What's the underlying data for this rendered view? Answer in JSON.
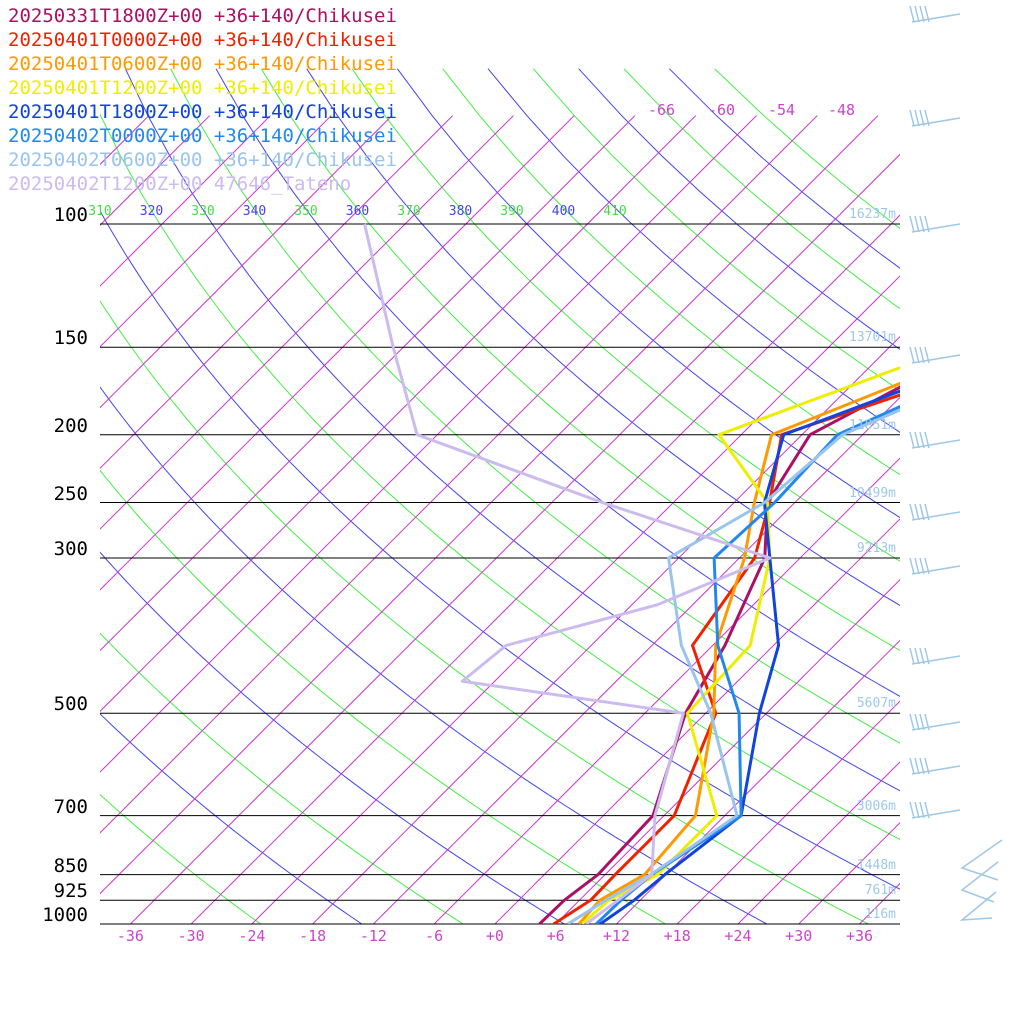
{
  "chart_data": {
    "type": "line",
    "subtype": "skew-T log-P sounding",
    "pressure_levels": [
      1000,
      925,
      850,
      700,
      500,
      300,
      250,
      200,
      150,
      100
    ],
    "pressure_labels": [
      "1000",
      "925",
      "850",
      "700",
      "500",
      "300",
      "250",
      "200",
      "150",
      "100"
    ],
    "height_labels": [
      "116m",
      "761m",
      "1448m",
      "3006m",
      "5607m",
      "9213m",
      "10499m",
      "11851m",
      "13701m",
      "16237m"
    ],
    "temperature_ticks": [
      -36,
      -30,
      -24,
      -18,
      -12,
      -6,
      0,
      6,
      12,
      18,
      24,
      30,
      36
    ],
    "temperature_tick_labels": [
      "-36",
      "-30",
      "-24",
      "-18",
      "-12",
      "-6",
      "+0",
      "+6",
      "+12",
      "+18",
      "+24",
      "+30",
      "+36"
    ],
    "top_temperature_labels": [
      "-66",
      "-60",
      "-54",
      "-48"
    ],
    "theta_labels": [
      {
        "text": "310",
        "color": "#44dd44"
      },
      {
        "text": "320",
        "color": "#4444ee"
      },
      {
        "text": "330",
        "color": "#44dd44"
      },
      {
        "text": "340",
        "color": "#4444ee"
      },
      {
        "text": "350",
        "color": "#44dd44"
      },
      {
        "text": "360",
        "color": "#4444ee"
      },
      {
        "text": "370",
        "color": "#44dd44"
      },
      {
        "text": "380",
        "color": "#4444ee"
      },
      {
        "text": "390",
        "color": "#44dd44"
      },
      {
        "text": "400",
        "color": "#4444ee"
      },
      {
        "text": "410",
        "color": "#44dd44"
      }
    ],
    "xlim": [
      -39,
      40
    ],
    "grid": true,
    "legend_position": "top-left",
    "series": [
      {
        "name": "20250331T1800Z+00 +36+140/Chikusei",
        "color": "#aa1166",
        "points": [
          [
            1000,
            4.4
          ],
          [
            925,
            4.5
          ],
          [
            850,
            5.3
          ],
          [
            700,
            4.9
          ],
          [
            500,
            -2.0
          ],
          [
            400,
            -4.8
          ],
          [
            300,
            -9.5
          ],
          [
            250,
            -14.7
          ],
          [
            200,
            -17.2
          ],
          [
            150,
            -9.5
          ],
          [
            100,
            -2.0
          ]
        ]
      },
      {
        "name": "20250401T0000Z+00 +36+140/Chikusei",
        "color": "#ee2200",
        "points": [
          [
            1000,
            5.8
          ],
          [
            925,
            7.1
          ],
          [
            850,
            7.0
          ],
          [
            700,
            7.0
          ],
          [
            500,
            1.0
          ],
          [
            400,
            -8.0
          ],
          [
            300,
            -10.5
          ],
          [
            250,
            -14.5
          ],
          [
            200,
            -20.0
          ],
          [
            150,
            -2.9
          ],
          [
            100,
            -2.5
          ]
        ]
      },
      {
        "name": "20250401T0600Z+00 +36+140/Chikusei",
        "color": "#ff9900",
        "points": [
          [
            1000,
            8.3
          ],
          [
            925,
            8.0
          ],
          [
            850,
            9.9
          ],
          [
            700,
            9.1
          ],
          [
            500,
            0.8
          ],
          [
            400,
            -5.7
          ],
          [
            300,
            -11.5
          ],
          [
            250,
            -16.0
          ],
          [
            200,
            -21.0
          ],
          [
            150,
            -8.0
          ],
          [
            100,
            -4.0
          ]
        ]
      },
      {
        "name": "20250401T1200Z+00 +36+140/Chikusei",
        "color": "#eeee00",
        "points": [
          [
            1000,
            8.6
          ],
          [
            925,
            8.9
          ],
          [
            850,
            11.2
          ],
          [
            700,
            11.2
          ],
          [
            500,
            -1.8
          ],
          [
            400,
            -2.3
          ],
          [
            300,
            -9.0
          ],
          [
            250,
            -14.7
          ],
          [
            200,
            -26.2
          ],
          [
            150,
            -11.5
          ],
          [
            100,
            -1.5
          ]
        ]
      },
      {
        "name": "20250401T1800Z+00 +36+140/Chikusei",
        "color": "#1144dd",
        "points": [
          [
            1000,
            10.4
          ],
          [
            925,
            11.4
          ],
          [
            850,
            11.9
          ],
          [
            700,
            13.6
          ],
          [
            500,
            5.3
          ],
          [
            400,
            0.5
          ],
          [
            300,
            -9.0
          ],
          [
            250,
            -15.0
          ],
          [
            200,
            -19.8
          ],
          [
            150,
            -5.4
          ],
          [
            100,
            -5.8
          ]
        ]
      },
      {
        "name": "20250402T0000Z+00 +36+140/Chikusei",
        "color": "#2288ee",
        "points": [
          [
            1000,
            10.0
          ],
          [
            925,
            10.1
          ],
          [
            850,
            10.6
          ],
          [
            700,
            13.6
          ],
          [
            500,
            3.3
          ],
          [
            400,
            -5.5
          ],
          [
            300,
            -14.5
          ],
          [
            250,
            -14.0
          ],
          [
            200,
            -14.5
          ],
          [
            150,
            -3.9
          ],
          [
            100,
            -4.0
          ]
        ]
      },
      {
        "name": "20250402T0600Z+00 +36+140/Chikusei",
        "color": "#99c4ee",
        "points": [
          [
            1000,
            7.2
          ],
          [
            925,
            8.6
          ],
          [
            850,
            10.5
          ],
          [
            700,
            13.2
          ],
          [
            500,
            0.5
          ],
          [
            400,
            -9.1
          ],
          [
            300,
            -19.0
          ],
          [
            250,
            -15.0
          ],
          [
            200,
            -14.0
          ],
          [
            150,
            -2.5
          ],
          [
            100,
            0.0
          ]
        ]
      },
      {
        "name": "20250402T1200Z+00 47646_Tateno",
        "color": "#ccbbee",
        "points": [
          [
            1000,
            9.0
          ],
          [
            925,
            9.8
          ],
          [
            850,
            10.6
          ],
          [
            700,
            5.1
          ],
          [
            500,
            -2.2
          ],
          [
            450,
            -27.2
          ],
          [
            400,
            -26.4
          ],
          [
            350,
            -15.5
          ],
          [
            300,
            -9.0
          ],
          [
            250,
            -31.0
          ],
          [
            200,
            -56.0
          ],
          [
            150,
            -67.0
          ],
          [
            100,
            -82.0
          ]
        ]
      }
    ]
  }
}
